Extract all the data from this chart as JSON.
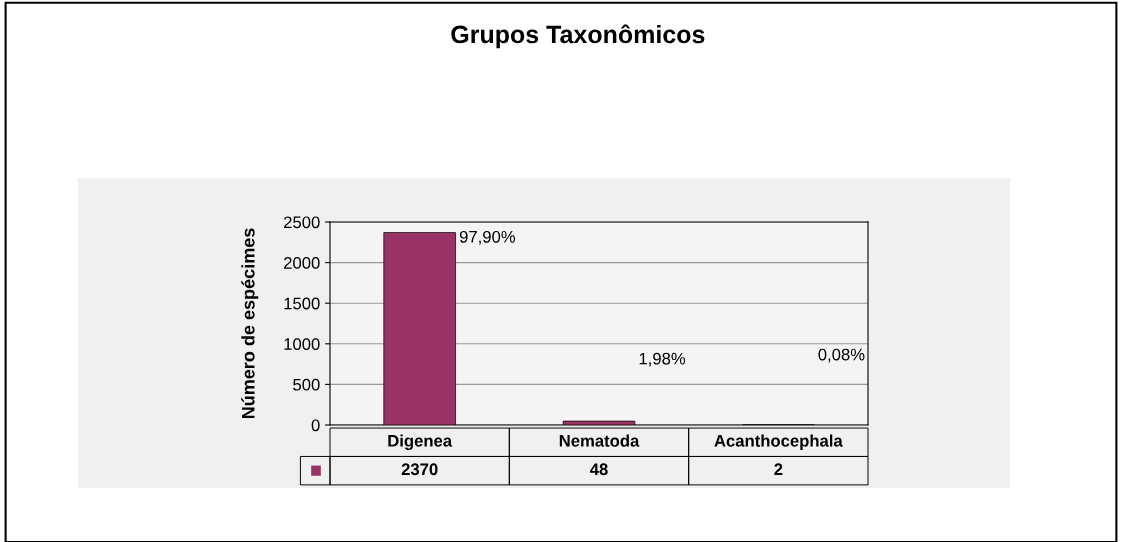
{
  "chart_data": {
    "type": "bar",
    "title": "Grupos Taxonômicos",
    "ylabel": "Número de espécimes",
    "categories": [
      "Digenea",
      "Nematoda",
      "Acanthocephala"
    ],
    "values": [
      2370,
      48,
      2
    ],
    "color": "#993366",
    "ylim": [
      0,
      2500
    ],
    "yticks": [
      0,
      500,
      1000,
      1500,
      2000,
      2500
    ],
    "grid": "y",
    "data_labels": true,
    "annotations": [
      "97,90%",
      "1,98%",
      "0,08%"
    ]
  }
}
